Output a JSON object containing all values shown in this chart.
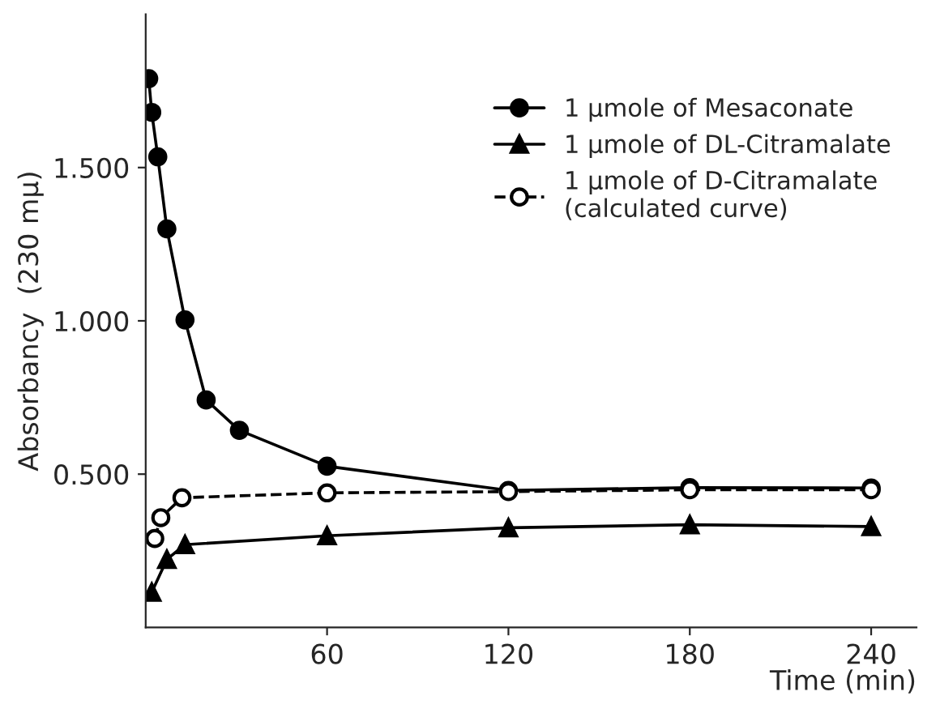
{
  "chart_data": {
    "type": "line",
    "xlabel": "Time (min)",
    "ylabel": "Absorbancy  (230 mμ)",
    "xlim": [
      0,
      255
    ],
    "ylim": [
      0,
      2.0
    ],
    "xticks": [
      60,
      120,
      180,
      240
    ],
    "yticks": [
      {
        "value": 0.5,
        "label": "0.500"
      },
      {
        "value": 1.0,
        "label": "1.000"
      },
      {
        "value": 1.5,
        "label": "1.500"
      }
    ],
    "grid": false,
    "legend": "top right",
    "series": [
      {
        "name": "1 μmole of Mesaconate",
        "color": "#000000",
        "marker": "circle",
        "line_style": "solid",
        "x": [
          1,
          2,
          4,
          7,
          13,
          20,
          31,
          60,
          120,
          180,
          240
        ],
        "values": [
          1.79,
          1.68,
          1.535,
          1.3,
          1.003,
          0.742,
          0.643,
          0.526,
          0.447,
          0.456,
          0.455
        ]
      },
      {
        "name": "1 μmole of DL-Citramalate",
        "color": "#000000",
        "marker": "triangle",
        "line_style": "solid",
        "x": [
          2,
          7,
          13,
          60,
          120,
          180,
          240
        ],
        "values": [
          0.115,
          0.222,
          0.27,
          0.299,
          0.325,
          0.335,
          0.329
        ]
      },
      {
        "name": "1 μmole of D-Citramalate\n(calculated curve)",
        "color": "#000000",
        "marker": "open circle",
        "line_style": "dashed",
        "x": [
          3,
          5,
          12,
          60,
          120,
          180,
          240
        ],
        "values": [
          0.29,
          0.358,
          0.423,
          0.439,
          0.443,
          0.449,
          0.449
        ]
      }
    ]
  }
}
